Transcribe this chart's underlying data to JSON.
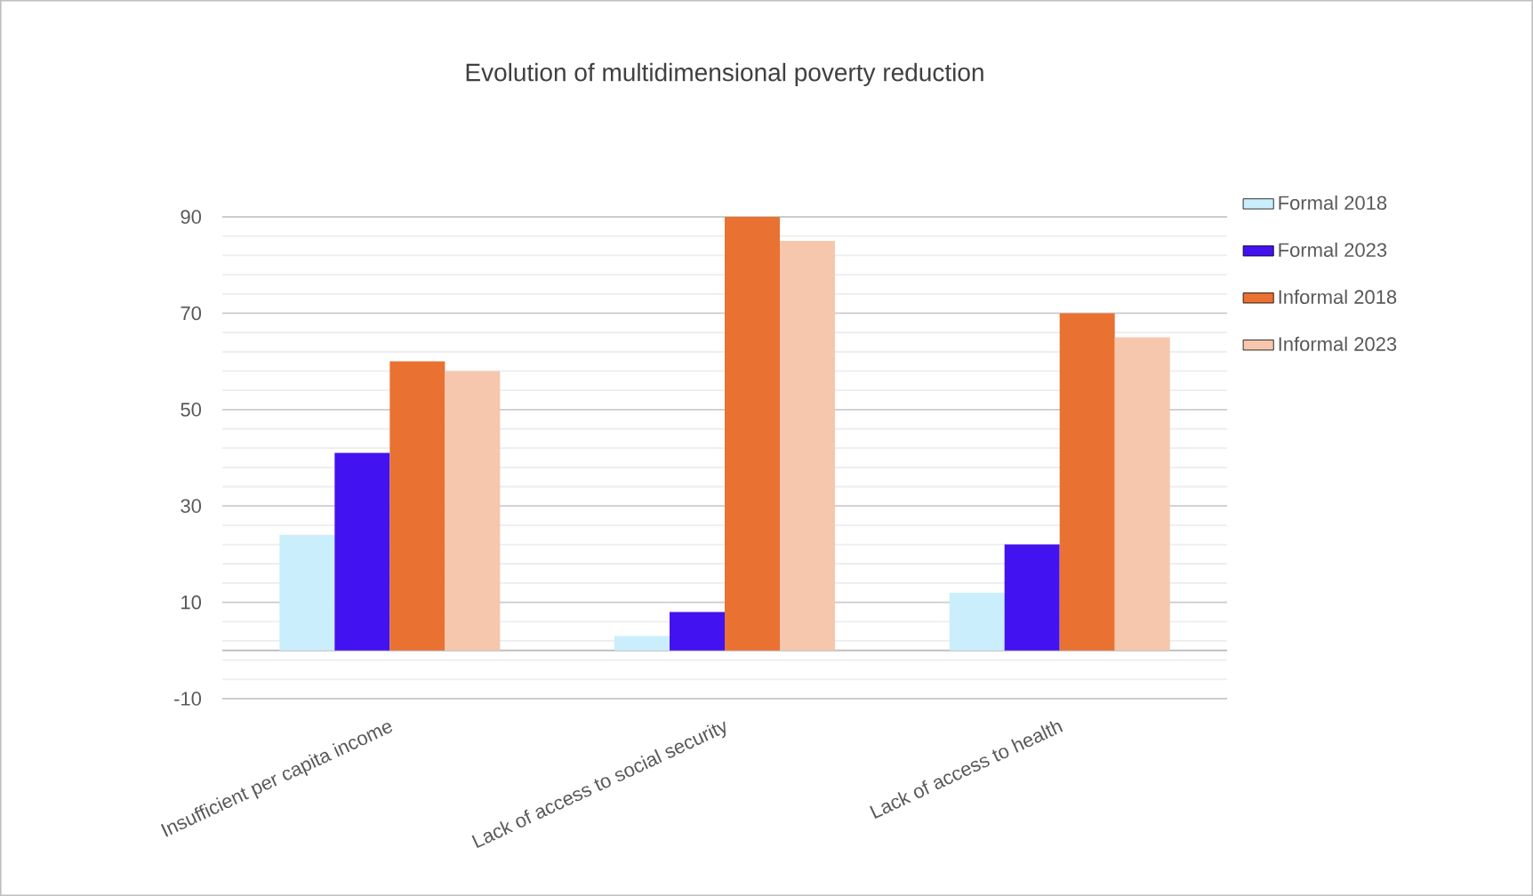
{
  "chart_data": {
    "type": "bar",
    "title": "Evolution of multidimensional poverty reduction",
    "categories": [
      "Insufficient per capita income",
      "Lack of access to social security",
      "Lack of access to health"
    ],
    "series": [
      {
        "name": "Formal 2018",
        "color": "#caeefb",
        "values": [
          24,
          3,
          12
        ]
      },
      {
        "name": "Formal 2023",
        "color": "#4312f0",
        "values": [
          41,
          8,
          22
        ]
      },
      {
        "name": "Informal 2018",
        "color": "#e97132",
        "values": [
          60,
          90,
          70
        ]
      },
      {
        "name": "Informal 2023",
        "color": "#f6c6ad",
        "values": [
          58,
          85,
          65
        ]
      }
    ],
    "ylim": [
      -10,
      90
    ],
    "yticks": [
      -10,
      10,
      30,
      50,
      70,
      90
    ],
    "grid": "y",
    "legend": "right"
  }
}
